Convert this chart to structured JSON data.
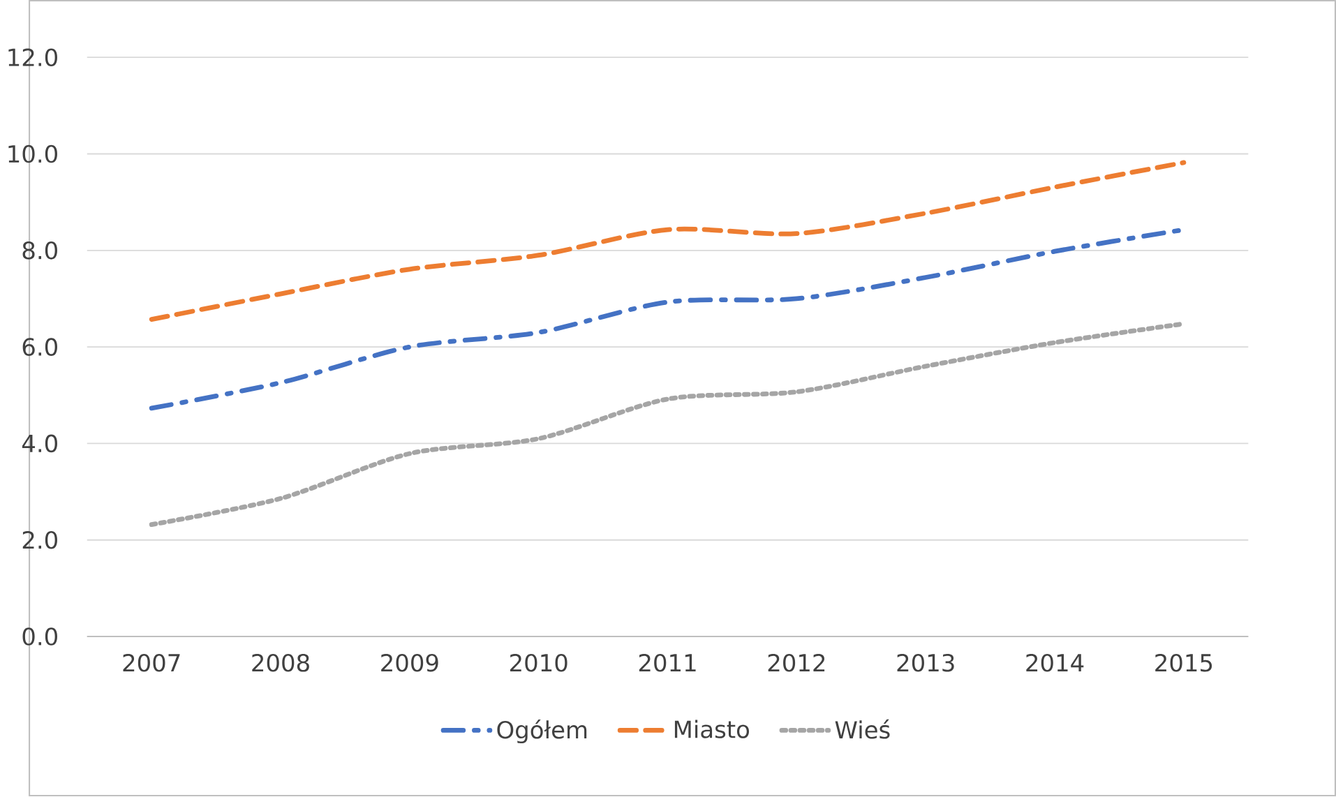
{
  "chart_data": {
    "type": "line",
    "categories": [
      "2007",
      "2008",
      "2009",
      "2010",
      "2011",
      "2012",
      "2013",
      "2014",
      "2015"
    ],
    "series": [
      {
        "name": "Ogółem",
        "color": "#4472c4",
        "line_style": "dashdot",
        "values": [
          4.73,
          5.26,
          6.0,
          6.3,
          6.93,
          7.0,
          7.44,
          7.98,
          8.43
        ]
      },
      {
        "name": "Miasto",
        "color": "#ed7d31",
        "line_style": "dashed",
        "values": [
          6.57,
          7.1,
          7.61,
          7.9,
          8.43,
          8.35,
          8.77,
          9.31,
          9.82
        ]
      },
      {
        "name": "Wieś",
        "color": "#a5a5a5",
        "line_style": "dotted",
        "values": [
          2.32,
          2.86,
          3.79,
          4.1,
          4.92,
          5.07,
          5.6,
          6.09,
          6.48
        ]
      }
    ],
    "ylim": [
      0,
      12
    ],
    "yticks": [
      {
        "value": 0,
        "label": "0.0"
      },
      {
        "value": 2,
        "label": "2.0"
      },
      {
        "value": 4,
        "label": "4.0"
      },
      {
        "value": 6,
        "label": "6.0"
      },
      {
        "value": 8,
        "label": "8.0"
      },
      {
        "value": 10,
        "label": "10.0"
      },
      {
        "value": 12,
        "label": "12.0"
      }
    ],
    "grid": "y",
    "legend": "bottom",
    "marker": "none"
  }
}
